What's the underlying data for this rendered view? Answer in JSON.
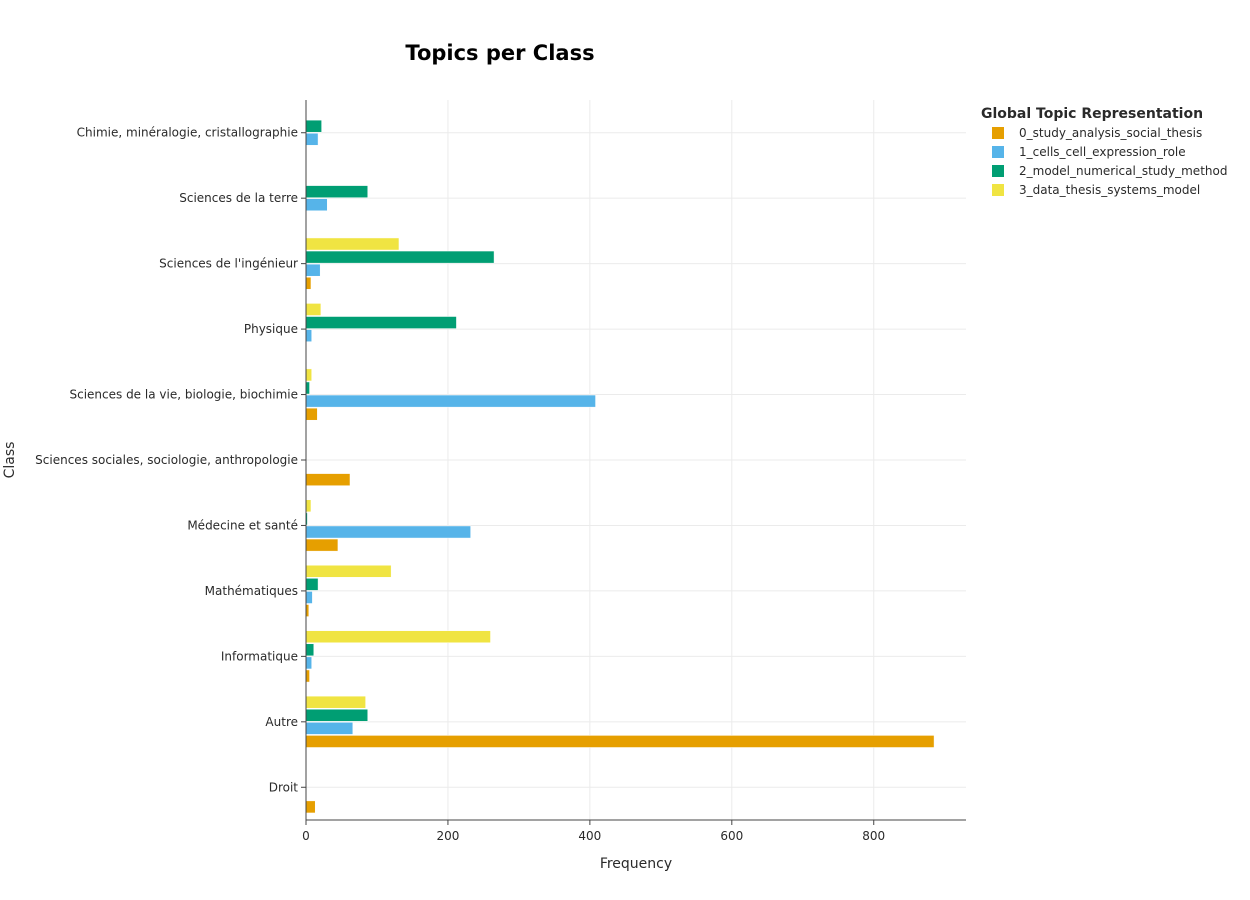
{
  "chart_data": {
    "type": "bar",
    "orientation": "horizontal",
    "title": "Topics per Class",
    "xlabel": "Frequency",
    "ylabel": "Class",
    "xlim": [
      0,
      930
    ],
    "xticks": [
      0,
      200,
      400,
      600,
      800
    ],
    "grid": true,
    "legend": {
      "title": "Global Topic Representation",
      "position": "top-right"
    },
    "categories": [
      "Droit",
      "Autre",
      "Informatique",
      "Mathématiques",
      "Médecine et santé",
      "Sciences sociales, sociologie, anthropologie",
      "Sciences de la vie, biologie, biochimie",
      "Physique",
      "Sciences de l'ingénieur",
      "Sciences de la terre",
      "Chimie, minéralogie, cristallographie"
    ],
    "series": [
      {
        "name": "0_study_analysis_social_thesis",
        "color": "#E69F00",
        "values": [
          13,
          885,
          5,
          4,
          45,
          62,
          16,
          0,
          7,
          0,
          0
        ]
      },
      {
        "name": "1_cells_cell_expression_role",
        "color": "#56B4E9",
        "values": [
          0,
          66,
          8,
          9,
          232,
          0,
          408,
          8,
          20,
          30,
          17
        ]
      },
      {
        "name": "2_model_numerical_study_method",
        "color": "#009E73",
        "values": [
          0,
          87,
          11,
          17,
          2,
          0,
          5,
          212,
          265,
          87,
          22
        ]
      },
      {
        "name": "3_data_thesis_systems_model",
        "color": "#F0E442",
        "values": [
          0,
          84,
          260,
          120,
          7,
          0,
          8,
          21,
          131,
          1,
          0
        ]
      }
    ]
  }
}
